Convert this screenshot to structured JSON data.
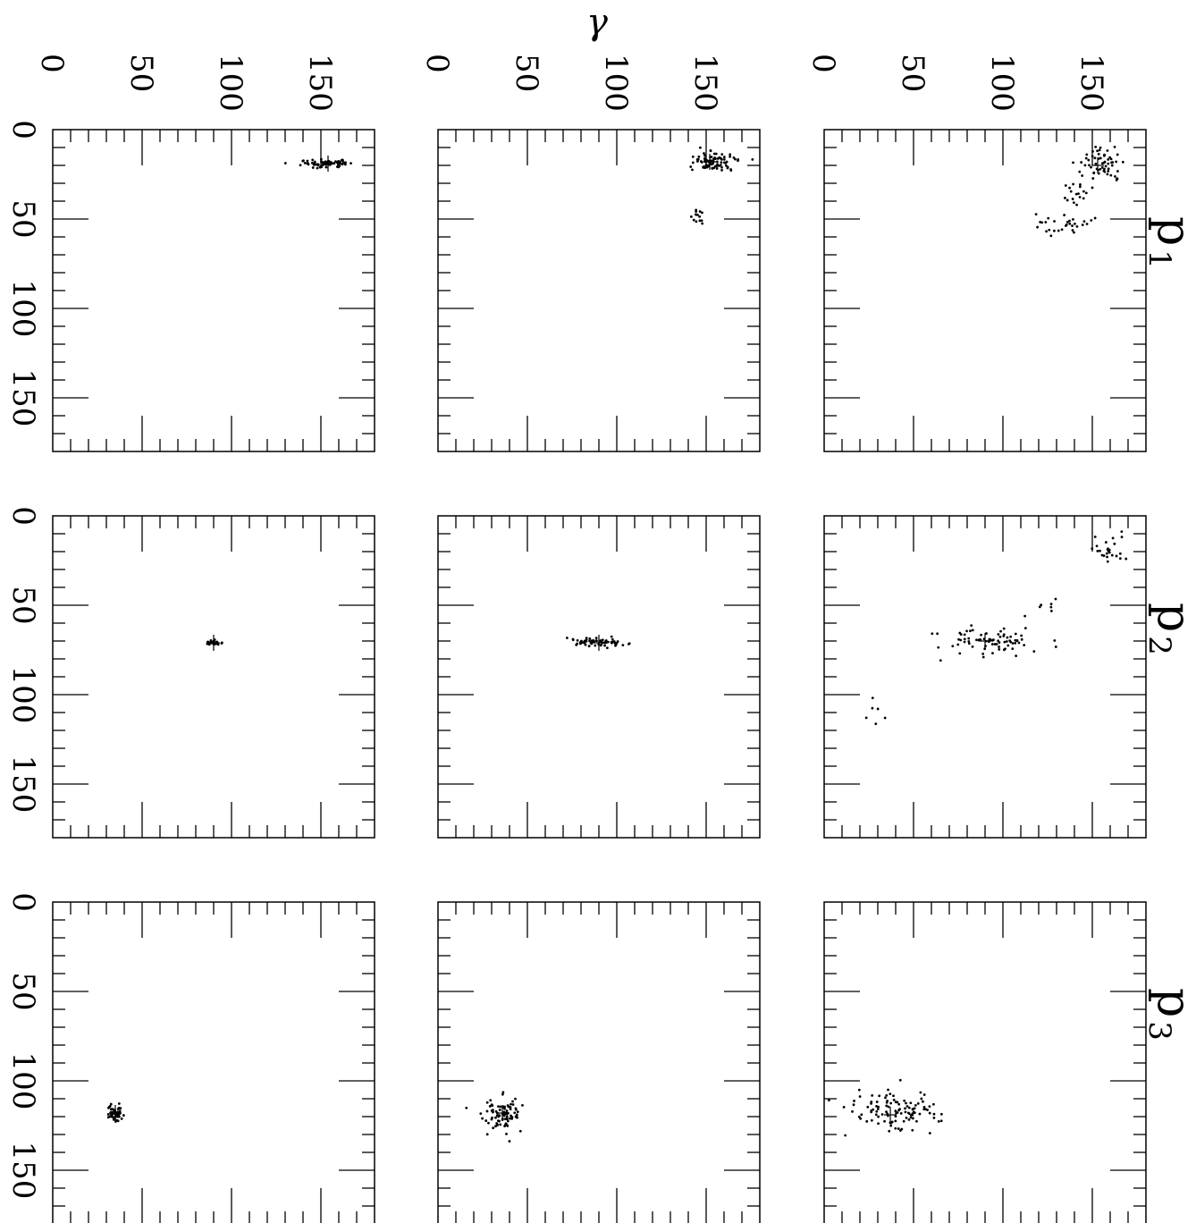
{
  "figure": {
    "gamma_label": "γ",
    "row_titles": [
      {
        "base": "p",
        "sub": "1"
      },
      {
        "base": "p",
        "sub": "2"
      },
      {
        "base": "p",
        "sub": "3"
      }
    ]
  },
  "chart_data": [
    {
      "id": "p1-a",
      "type": "scatter",
      "row": "p1",
      "ylabel": "γ",
      "xlim": [
        0,
        180
      ],
      "ylim": [
        0,
        180
      ],
      "x_ticks": [
        0,
        50,
        100,
        150
      ],
      "y_ticks": [
        0,
        50,
        100,
        150
      ],
      "clusters": [
        {
          "cx": 20,
          "cy": 155,
          "sx": 5,
          "sy": 6,
          "n": 60
        },
        {
          "cx": 35,
          "cy": 140,
          "sx": 4,
          "sy": 4,
          "n": 18
        },
        {
          "cx": 53,
          "cy": 132,
          "sx": 3,
          "sy": 9,
          "n": 30
        }
      ],
      "marker": {
        "x": 20,
        "y": 153
      }
    },
    {
      "id": "p2-a",
      "type": "scatter",
      "row": "p2",
      "xlim": [
        0,
        180
      ],
      "ylim": [
        0,
        180
      ],
      "x_ticks": [
        0,
        50,
        100,
        150
      ],
      "y_ticks": [
        0,
        50,
        100,
        150
      ],
      "clusters": [
        {
          "cx": 18,
          "cy": 160,
          "sx": 4,
          "sy": 6,
          "n": 25
        },
        {
          "cx": 48,
          "cy": 125,
          "sx": 4,
          "sy": 4,
          "n": 6
        },
        {
          "cx": 70,
          "cy": 95,
          "sx": 4,
          "sy": 15,
          "n": 80
        },
        {
          "cx": 108,
          "cy": 30,
          "sx": 3,
          "sy": 4,
          "n": 6
        }
      ],
      "marker": {
        "x": 70,
        "y": 90
      }
    },
    {
      "id": "p3-a",
      "type": "scatter",
      "row": "p3",
      "xlim": [
        0,
        180
      ],
      "ylim": [
        0,
        180
      ],
      "x_ticks": [
        0,
        50,
        100,
        150
      ],
      "y_ticks": [
        0,
        50,
        100,
        150
      ],
      "clusters": [
        {
          "cx": 117,
          "cy": 40,
          "sx": 6,
          "sy": 11,
          "n": 110
        }
      ],
      "marker": {
        "x": 119,
        "y": 37
      }
    },
    {
      "id": "p1-b",
      "type": "scatter",
      "row": "p1",
      "ylabel": "γ",
      "xlim": [
        0,
        180
      ],
      "ylim": [
        0,
        180
      ],
      "x_ticks": [
        0,
        50,
        100,
        150
      ],
      "y_ticks": [
        0,
        50,
        100,
        150
      ],
      "clusters": [
        {
          "cx": 18,
          "cy": 153,
          "sx": 3,
          "sy": 7,
          "n": 85
        },
        {
          "cx": 48,
          "cy": 145,
          "sx": 3,
          "sy": 2,
          "n": 14
        }
      ],
      "marker": {
        "x": 18,
        "y": 152
      }
    },
    {
      "id": "p2-b",
      "type": "scatter",
      "row": "p2",
      "xlim": [
        0,
        180
      ],
      "ylim": [
        0,
        180
      ],
      "x_ticks": [
        0,
        50,
        100,
        150
      ],
      "y_ticks": [
        0,
        50,
        100,
        150
      ],
      "clusters": [
        {
          "cx": 71,
          "cy": 90,
          "sx": 1.2,
          "sy": 7,
          "n": 70
        }
      ],
      "marker": {
        "x": 71,
        "y": 90
      }
    },
    {
      "id": "p3-b",
      "type": "scatter",
      "row": "p3",
      "xlim": [
        0,
        180
      ],
      "ylim": [
        0,
        180
      ],
      "x_ticks": [
        0,
        50,
        100,
        150
      ],
      "y_ticks": [
        0,
        50,
        100,
        150
      ],
      "clusters": [
        {
          "cx": 118,
          "cy": 36,
          "sx": 5,
          "sy": 5,
          "n": 90
        }
      ],
      "marker": {
        "x": 118,
        "y": 36
      }
    },
    {
      "id": "p1-c",
      "type": "scatter",
      "row": "p1",
      "ylabel": "γ",
      "xlim": [
        0,
        180
      ],
      "ylim": [
        0,
        180
      ],
      "x_ticks": [
        0,
        50,
        100,
        150
      ],
      "y_ticks": [
        0,
        50,
        100,
        150
      ],
      "clusters": [
        {
          "cx": 19,
          "cy": 153,
          "sx": 1.2,
          "sy": 8,
          "n": 80
        }
      ],
      "marker": {
        "x": 19,
        "y": 154
      }
    },
    {
      "id": "p2-c",
      "type": "scatter",
      "row": "p2",
      "xlim": [
        0,
        180
      ],
      "ylim": [
        0,
        180
      ],
      "x_ticks": [
        0,
        50,
        100,
        150
      ],
      "y_ticks": [
        0,
        50,
        100,
        150
      ],
      "clusters": [
        {
          "cx": 71,
          "cy": 90,
          "sx": 0.6,
          "sy": 2.5,
          "n": 30
        }
      ],
      "marker": {
        "x": 71,
        "y": 90
      }
    },
    {
      "id": "p3-c",
      "type": "scatter",
      "row": "p3",
      "xlim": [
        0,
        180
      ],
      "ylim": [
        0,
        180
      ],
      "x_ticks": [
        0,
        50,
        100,
        150
      ],
      "y_ticks": [
        0,
        50,
        100,
        150
      ],
      "clusters": [
        {
          "cx": 118,
          "cy": 35,
          "sx": 2,
          "sy": 2,
          "n": 60
        }
      ],
      "marker": {
        "x": 118,
        "y": 35
      }
    }
  ]
}
